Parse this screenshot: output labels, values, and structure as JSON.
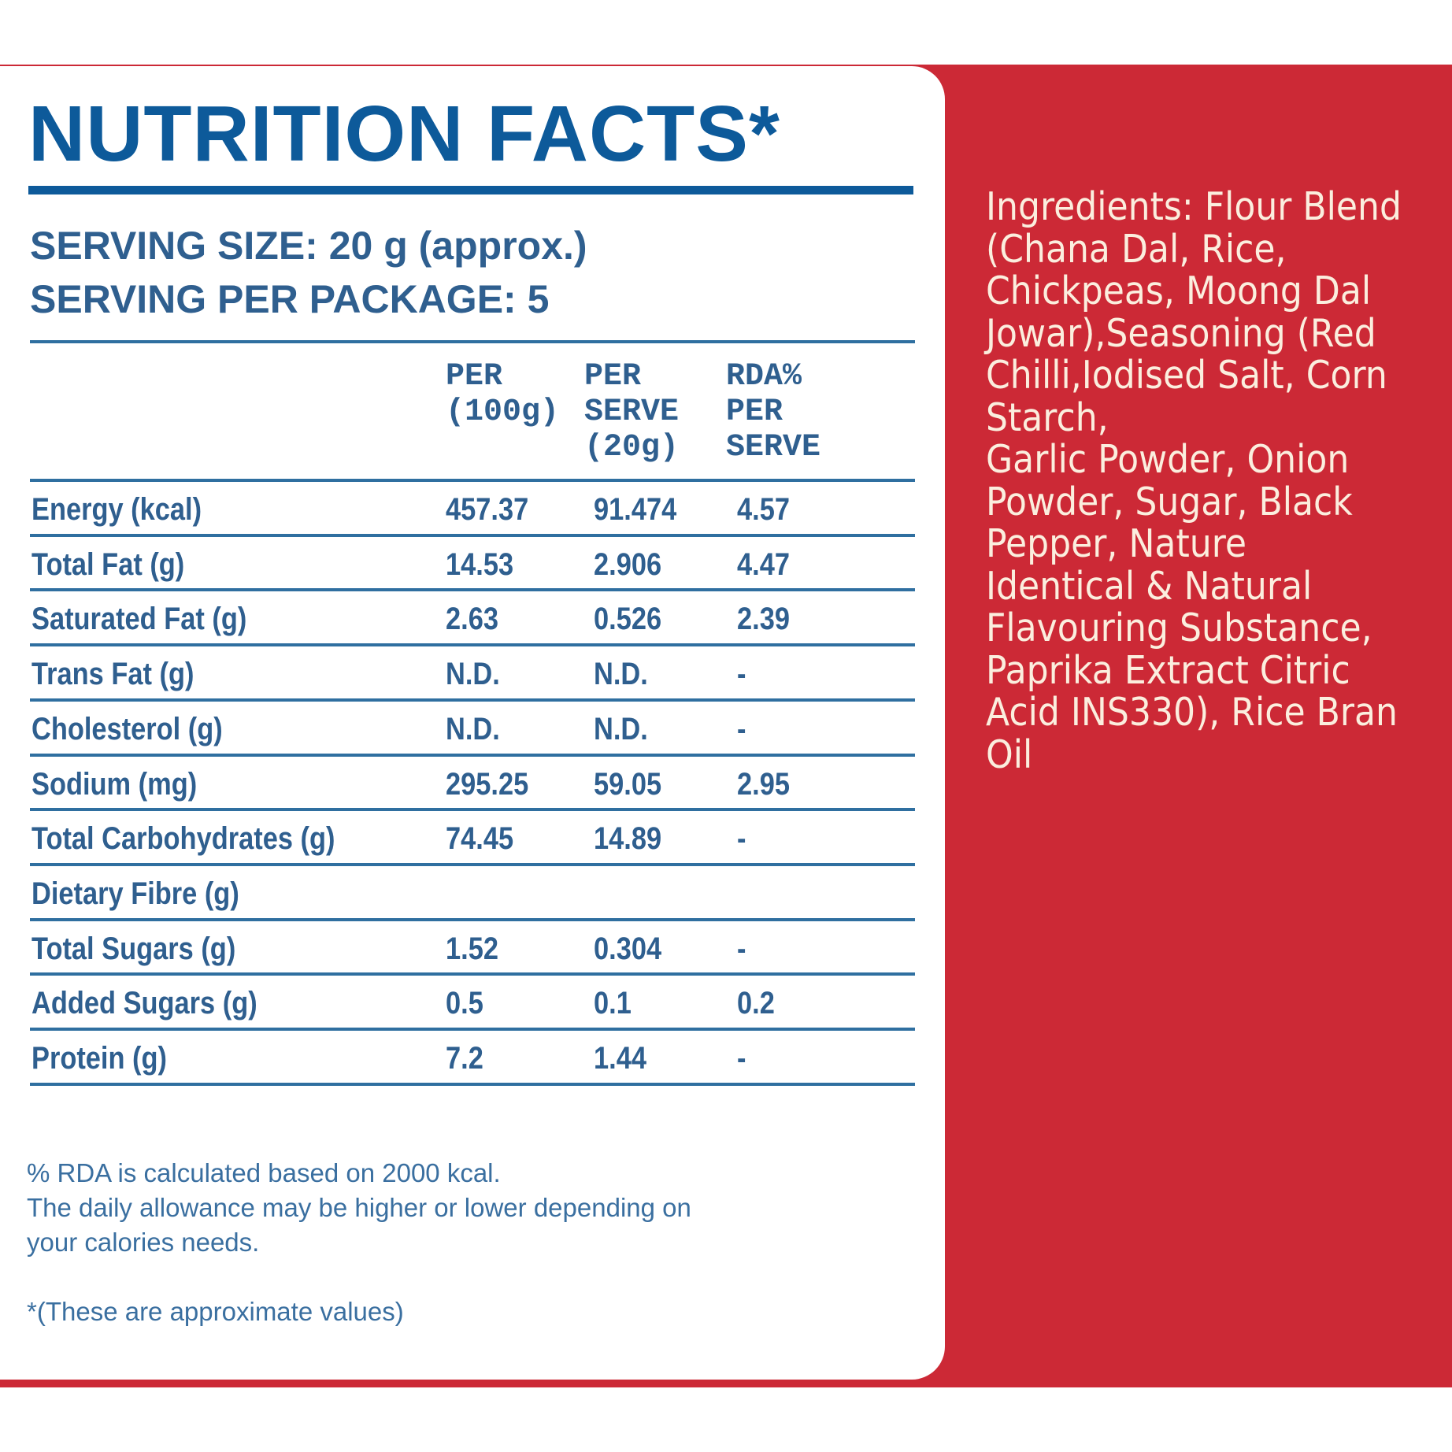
{
  "nutrition": {
    "title": "NUTRITION FACTS*",
    "serving_size": "SERVING SIZE: 20 g (approx.)",
    "servings_per_package": "SERVING PER PACKAGE: 5",
    "columns": [
      "PER\n(100g)",
      "PER\nSERVE\n(20g)",
      "RDA%\nPER\nSERVE"
    ],
    "rows": [
      {
        "label": "Energy (kcal)",
        "per100": "457.37",
        "perServe": "91.474",
        "rda": "4.57"
      },
      {
        "label": "Total Fat (g)",
        "per100": "14.53",
        "perServe": "2.906",
        "rda": "4.47"
      },
      {
        "label": "Saturated Fat (g)",
        "per100": "2.63",
        "perServe": "0.526",
        "rda": "2.39"
      },
      {
        "label": "Trans Fat (g)",
        "per100": "N.D.",
        "perServe": "N.D.",
        "rda": "-"
      },
      {
        "label": "Cholesterol (g)",
        "per100": "N.D.",
        "perServe": "N.D.",
        "rda": "-"
      },
      {
        "label": "Sodium (mg)",
        "per100": "295.25",
        "perServe": "59.05",
        "rda": "2.95"
      },
      {
        "label": "Total Carbohydrates (g)",
        "per100": "74.45",
        "perServe": "14.89",
        "rda": "-"
      },
      {
        "label": "Dietary Fibre (g)",
        "per100": "",
        "perServe": "",
        "rda": ""
      },
      {
        "label": "Total Sugars (g)",
        "per100": "1.52",
        "perServe": "0.304",
        "rda": "-"
      },
      {
        "label": "Added Sugars (g)",
        "per100": "0.5",
        "perServe": "0.1",
        "rda": "0.2"
      },
      {
        "label": "Protein (g)",
        "per100": "7.2",
        "perServe": "1.44",
        "rda": "-"
      }
    ],
    "footnote_rda_1": "% RDA is calculated based on 2000 kcal.",
    "footnote_rda_2": "The daily allowance may be higher or lower depending on",
    "footnote_rda_3": "your calories needs.",
    "footnote_approx": "*(These are approximate values)"
  },
  "ingredients": {
    "text": "Ingredients: Flour Blend\n(Chana Dal, Rice,\nChickpeas, Moong Dal\nJowar),Seasoning (Red\nChilli,Iodised Salt, Corn\nStarch,\nGarlic Powder, Onion\nPowder, Sugar, Black\nPepper, Nature\nIdentical & Natural\nFlavouring Substance,\nPaprika Extract Citric\nAcid INS330), Rice Bran\nOil"
  },
  "colors": {
    "brand_red": "#cc2936",
    "label_blue": "#0d5a9a",
    "text_blue": "#2f5f8f",
    "ingredient_cream": "#fbeede"
  }
}
